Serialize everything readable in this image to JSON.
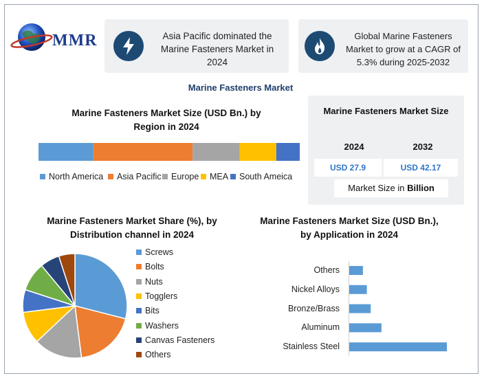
{
  "brand": {
    "logo_text": "MMR"
  },
  "cards": [
    {
      "text": "Asia Pacific dominated the Marine Fasteners Market in 2024",
      "icon": "lightning-icon"
    },
    {
      "text": "Global Marine Fasteners Market to grow at a CAGR of 5.3% during 2025-2032",
      "icon": "flame-icon"
    }
  ],
  "main_title": "Marine Fasteners Market",
  "market_size_panel": {
    "title": "Marine Fasteners Market Size",
    "years": [
      "2024",
      "2032"
    ],
    "values": [
      "USD 27.9",
      "USD 42.17"
    ],
    "footer_prefix": "Market Size in ",
    "footer_bold": "Billion"
  },
  "colors": {
    "north_america": "#5b9bd5",
    "asia_pacific": "#ed7d31",
    "europe": "#a5a5a5",
    "mea": "#ffc000",
    "south_america": "#4472c4",
    "washers": "#70ad47",
    "canvas": "#264478",
    "others": "#9e480e",
    "bar": "#5b9bd5"
  },
  "chart_data": [
    {
      "type": "bar",
      "orientation": "horizontal-stacked",
      "title": "Marine Fasteners Market Size (USD Bn.) by Region in 2024",
      "series": [
        {
          "name": "North America",
          "values": [
            21
          ]
        },
        {
          "name": "Asia Pacific",
          "values": [
            38
          ]
        },
        {
          "name": "Europe",
          "values": [
            18
          ]
        },
        {
          "name": "MEA",
          "values": [
            14
          ]
        },
        {
          "name": "South Ameica",
          "values": [
            9
          ]
        }
      ],
      "legend": "bottom"
    },
    {
      "type": "pie",
      "title": "Marine Fasteners Market Share (%), by Distribution channel in 2024",
      "categories": [
        "Screws",
        "Bolts",
        "Nuts",
        "Togglers",
        "Bits",
        "Washers",
        "Canvas Fasteners",
        "Others"
      ],
      "values": [
        29,
        19,
        15,
        10,
        7,
        9,
        6,
        5
      ],
      "legend": "right"
    },
    {
      "type": "bar",
      "orientation": "horizontal",
      "title": "Marine Fasteners Market Size (USD Bn.), by Application in 2024",
      "categories": [
        "Others",
        "Nickel Alloys",
        "Bronze/Brass",
        "Aluminum",
        "Stainless Steel"
      ],
      "values": [
        1.4,
        1.8,
        2.2,
        3.3,
        10.0
      ]
    }
  ]
}
